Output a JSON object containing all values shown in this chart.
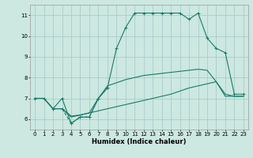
{
  "title": "",
  "xlabel": "Humidex (Indice chaleur)",
  "bg_color": "#cce8e0",
  "grid_color": "#aacccc",
  "line_color": "#1a7a6a",
  "xlim": [
    -0.5,
    23.5
  ],
  "ylim": [
    5.5,
    11.5
  ],
  "yticks": [
    6,
    7,
    8,
    9,
    10,
    11
  ],
  "xticks": [
    0,
    1,
    2,
    3,
    4,
    5,
    6,
    7,
    8,
    9,
    10,
    11,
    12,
    13,
    14,
    15,
    16,
    17,
    18,
    19,
    20,
    21,
    22,
    23
  ],
  "line1_x": [
    0,
    1,
    2,
    3,
    4,
    5,
    6,
    7,
    8,
    9,
    10,
    11,
    12,
    13,
    14,
    15,
    16,
    17,
    18,
    19,
    20,
    21,
    22,
    23
  ],
  "line1_y": [
    7.0,
    7.0,
    6.5,
    7.0,
    5.8,
    6.1,
    6.1,
    7.0,
    7.5,
    9.4,
    10.4,
    11.1,
    11.1,
    11.1,
    11.1,
    11.1,
    11.1,
    10.8,
    11.1,
    9.9,
    9.4,
    9.2,
    7.2,
    7.2
  ],
  "line2_x": [
    0,
    1,
    2,
    3,
    4,
    5,
    6,
    7,
    8,
    9,
    10,
    11,
    12,
    13,
    14,
    15,
    16,
    17,
    18,
    19,
    20,
    21,
    22,
    23
  ],
  "line2_y": [
    7.0,
    7.0,
    6.5,
    6.5,
    6.1,
    6.2,
    6.3,
    7.0,
    7.6,
    7.75,
    7.9,
    8.0,
    8.1,
    8.15,
    8.2,
    8.25,
    8.3,
    8.35,
    8.4,
    8.35,
    7.8,
    7.2,
    7.1,
    7.1
  ],
  "line3_x": [
    0,
    1,
    2,
    3,
    4,
    5,
    6,
    7,
    8,
    9,
    10,
    11,
    12,
    13,
    14,
    15,
    16,
    17,
    18,
    19,
    20,
    21,
    22,
    23
  ],
  "line3_y": [
    7.0,
    7.0,
    6.5,
    6.5,
    6.15,
    6.2,
    6.3,
    6.4,
    6.5,
    6.6,
    6.7,
    6.8,
    6.9,
    7.0,
    7.1,
    7.2,
    7.35,
    7.5,
    7.6,
    7.7,
    7.8,
    7.1,
    7.1,
    7.1
  ],
  "dashed_x": [
    3,
    4,
    5,
    6,
    7,
    8
  ],
  "dashed_y": [
    6.5,
    5.8,
    6.1,
    6.1,
    7.0,
    7.5
  ]
}
